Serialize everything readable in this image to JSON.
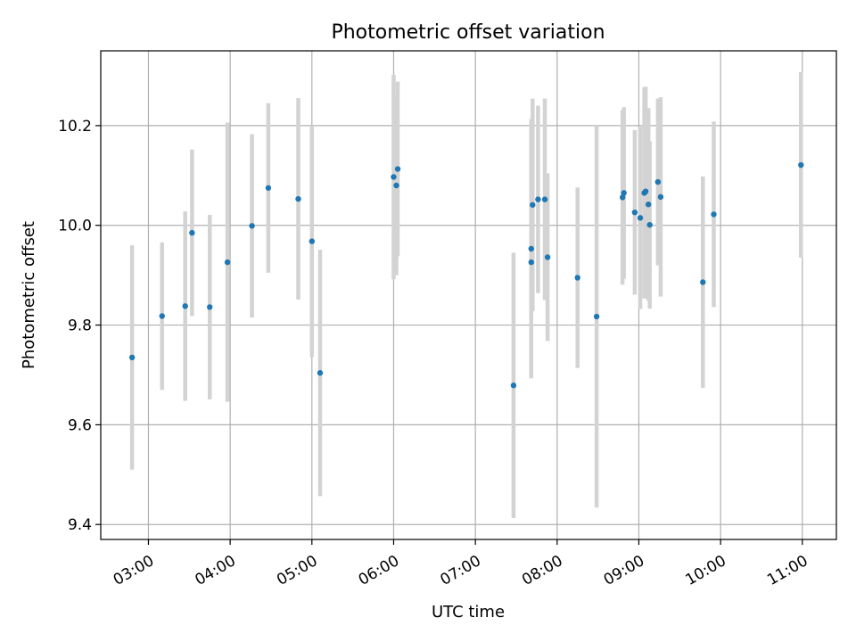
{
  "chart_data": {
    "type": "scatter",
    "title": "Photometric offset variation",
    "xlabel": "UTC time",
    "ylabel": "Photometric offset",
    "x_ticks": [
      "03:00",
      "04:00",
      "05:00",
      "06:00",
      "07:00",
      "08:00",
      "09:00",
      "10:00",
      "11:00"
    ],
    "y_ticks": [
      "9.4",
      "9.6",
      "9.8",
      "10.0",
      "10.2"
    ],
    "xlim": [
      "02:25",
      "11:25"
    ],
    "ylim": [
      9.37,
      10.35
    ],
    "grid": true,
    "colors": {
      "point": "#1f77b4",
      "errorbar": "#d3d3d3",
      "grid": "#b0b0b0"
    },
    "points": [
      {
        "t": "02:48",
        "y": 9.735,
        "err": 0.225
      },
      {
        "t": "03:10",
        "y": 9.818,
        "err": 0.148
      },
      {
        "t": "03:27",
        "y": 9.838,
        "err": 0.19
      },
      {
        "t": "03:32",
        "y": 9.985,
        "err": 0.167
      },
      {
        "t": "03:45",
        "y": 9.836,
        "err": 0.185
      },
      {
        "t": "03:58",
        "y": 9.926,
        "err": 0.28
      },
      {
        "t": "04:16",
        "y": 9.999,
        "err": 0.184
      },
      {
        "t": "04:28",
        "y": 10.075,
        "err": 0.17
      },
      {
        "t": "04:50",
        "y": 10.053,
        "err": 0.202
      },
      {
        "t": "05:00",
        "y": 9.968,
        "err": 0.232
      },
      {
        "t": "05:06",
        "y": 9.704,
        "err": 0.247
      },
      {
        "t": "06:00",
        "y": 10.097,
        "err": 0.205
      },
      {
        "t": "06:02",
        "y": 10.08,
        "err": 0.18
      },
      {
        "t": "06:03",
        "y": 10.113,
        "err": 0.175
      },
      {
        "t": "07:28",
        "y": 9.679,
        "err": 0.266
      },
      {
        "t": "07:41",
        "y": 9.953,
        "err": 0.26
      },
      {
        "t": "07:41",
        "y": 9.926,
        "err": 0.095
      },
      {
        "t": "07:42",
        "y": 10.041,
        "err": 0.213
      },
      {
        "t": "07:46",
        "y": 10.052,
        "err": 0.188
      },
      {
        "t": "07:51",
        "y": 10.052,
        "err": 0.202
      },
      {
        "t": "07:53",
        "y": 9.936,
        "err": 0.168
      },
      {
        "t": "08:15",
        "y": 9.895,
        "err": 0.181
      },
      {
        "t": "08:29",
        "y": 9.817,
        "err": 0.383
      },
      {
        "t": "08:48",
        "y": 10.056,
        "err": 0.175
      },
      {
        "t": "08:49",
        "y": 10.065,
        "err": 0.172
      },
      {
        "t": "08:57",
        "y": 10.026,
        "err": 0.165
      },
      {
        "t": "09:01",
        "y": 10.015,
        "err": 0.183
      },
      {
        "t": "09:04",
        "y": 10.065,
        "err": 0.212
      },
      {
        "t": "09:05",
        "y": 10.068,
        "err": 0.21
      },
      {
        "t": "09:07",
        "y": 10.042,
        "err": 0.193
      },
      {
        "t": "09:08",
        "y": 10.001,
        "err": 0.168
      },
      {
        "t": "09:14",
        "y": 10.087,
        "err": 0.167
      },
      {
        "t": "09:16",
        "y": 10.057,
        "err": 0.2
      },
      {
        "t": "09:47",
        "y": 9.886,
        "err": 0.212
      },
      {
        "t": "09:55",
        "y": 10.022,
        "err": 0.186
      },
      {
        "t": "10:59",
        "y": 10.121,
        "err": 0.186
      }
    ]
  }
}
